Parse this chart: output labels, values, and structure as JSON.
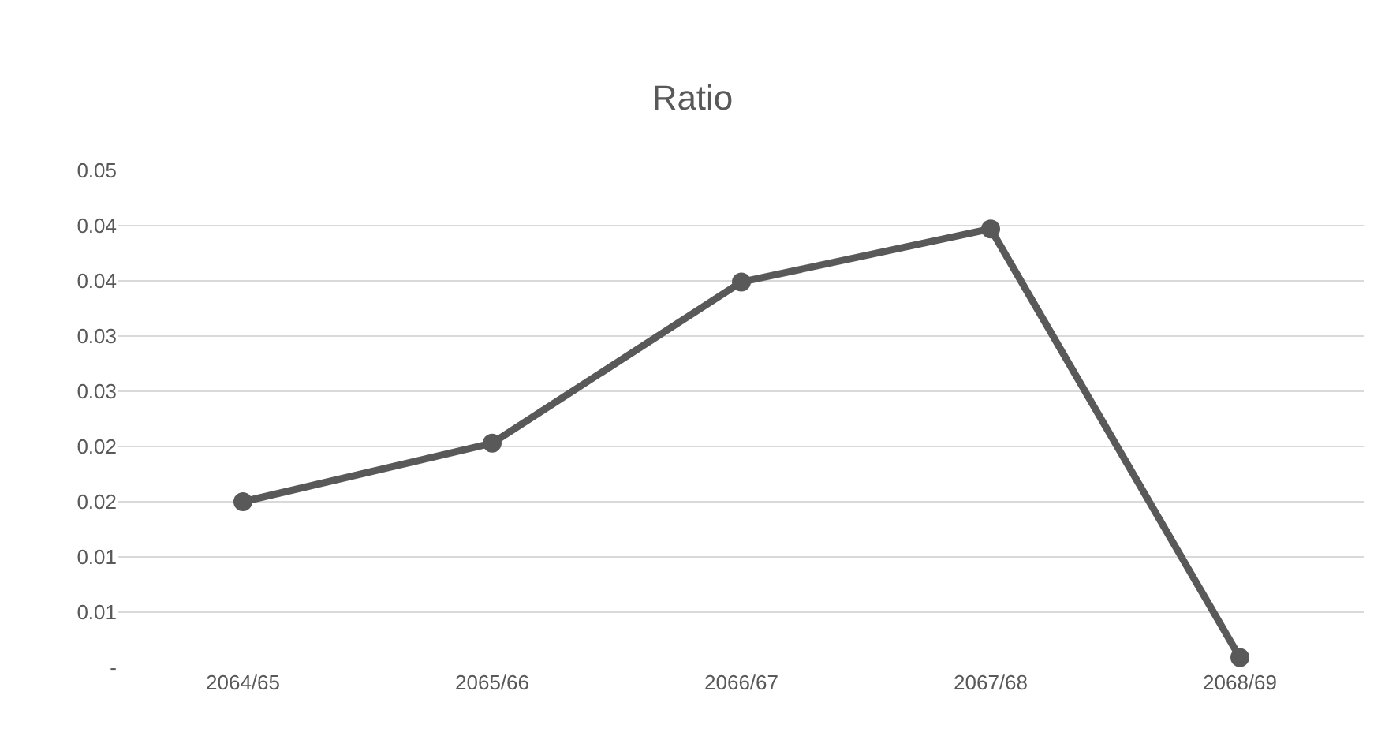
{
  "chart_data": {
    "type": "line",
    "title": "Ratio",
    "categories": [
      "2064/65",
      "2065/66",
      "2066/67",
      "2067/68",
      "2068/69"
    ],
    "series": [
      {
        "color": "#595959",
        "values": [
          0.015,
          0.0203,
          0.0349,
          0.0397,
          0.0009
        ]
      }
    ],
    "ylim": [
      0,
      0.045
    ],
    "yticks": [
      {
        "value": 0,
        "label": "-"
      },
      {
        "value": 0.005,
        "label": "0.01"
      },
      {
        "value": 0.01,
        "label": "0.01"
      },
      {
        "value": 0.015,
        "label": "0.02"
      },
      {
        "value": 0.02,
        "label": "0.02"
      },
      {
        "value": 0.025,
        "label": "0.03"
      },
      {
        "value": 0.03,
        "label": "0.03"
      },
      {
        "value": 0.035,
        "label": "0.04"
      },
      {
        "value": 0.04,
        "label": "0.04"
      },
      {
        "value": 0.045,
        "label": "0.05"
      }
    ],
    "grid": "y",
    "legend": false,
    "marker": "circle",
    "line_style": "solid"
  }
}
